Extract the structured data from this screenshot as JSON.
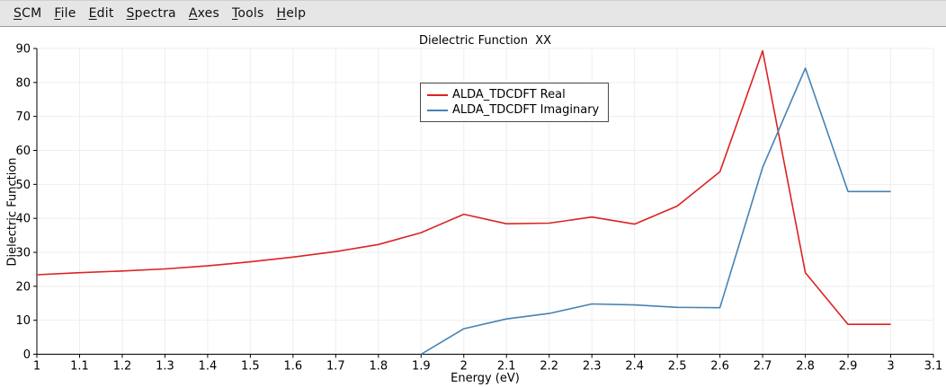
{
  "menu": {
    "items": [
      {
        "label": "SCM"
      },
      {
        "label": "File"
      },
      {
        "label": "Edit"
      },
      {
        "label": "Spectra"
      },
      {
        "label": "Axes"
      },
      {
        "label": "Tools"
      },
      {
        "label": "Help"
      }
    ]
  },
  "chart_data": {
    "type": "line",
    "title": "Dielectric Function  XX",
    "xlabel": "Energy (eV)",
    "ylabel": "Dielectric Function",
    "xlim": [
      1,
      3.1
    ],
    "ylim": [
      0,
      90
    ],
    "xticks": [
      1,
      1.1,
      1.2,
      1.3,
      1.4,
      1.5,
      1.6,
      1.7,
      1.8,
      1.9,
      2,
      2.1,
      2.2,
      2.3,
      2.4,
      2.5,
      2.6,
      2.7,
      2.8,
      2.9,
      3,
      3.1
    ],
    "yticks": [
      0,
      10,
      20,
      30,
      40,
      50,
      60,
      70,
      80,
      90
    ],
    "grid": true,
    "legend_position": "upper center-left",
    "series": [
      {
        "name": "ALDA_TDCDFT Real",
        "color": "#dd2222",
        "x": [
          1.0,
          1.1,
          1.2,
          1.3,
          1.4,
          1.5,
          1.6,
          1.7,
          1.8,
          1.9,
          2.0,
          2.1,
          2.2,
          2.3,
          2.4,
          2.5,
          2.6,
          2.7,
          2.8,
          2.9,
          3.0
        ],
        "values": [
          23.4,
          24.0,
          24.5,
          25.1,
          26.0,
          27.2,
          28.6,
          30.2,
          32.3,
          35.8,
          41.2,
          38.4,
          38.6,
          40.4,
          38.3,
          43.6,
          53.7,
          89.3,
          24.0,
          8.8,
          8.8
        ]
      },
      {
        "name": "ALDA_TDCDFT Imaginary",
        "color": "#4682b4",
        "x": [
          1.9,
          2.0,
          2.1,
          2.2,
          2.3,
          2.4,
          2.5,
          2.6,
          2.7,
          2.8,
          2.9,
          3.0
        ],
        "values": [
          0.0,
          7.5,
          10.4,
          12.0,
          14.8,
          14.5,
          13.8,
          13.7,
          55.0,
          84.2,
          47.9,
          47.9
        ]
      }
    ]
  }
}
